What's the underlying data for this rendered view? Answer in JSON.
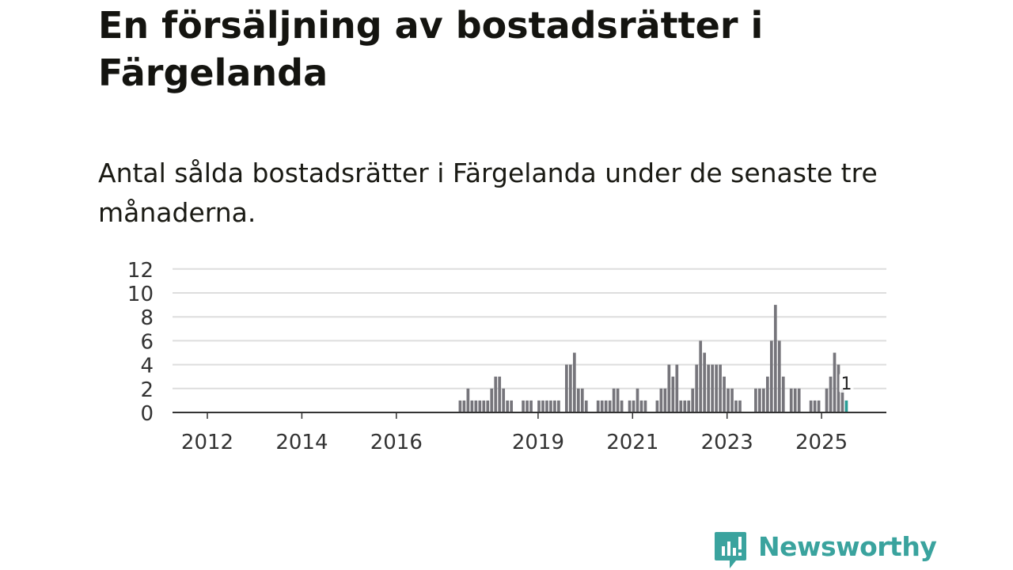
{
  "title": "En försäljning av bostadsrätter i Färgelanda",
  "subtitle": "Antal sålda bostadsrätter i Färgelanda under de senaste tre månaderna.",
  "brand": {
    "name": "Newsworthy",
    "color": "#3aa39e"
  },
  "colors": {
    "bar": "#76757b",
    "highlight": "#2a9d96",
    "grid": "#dddddd",
    "axis": "#333333"
  },
  "chart_data": {
    "type": "bar",
    "title": "En försäljning av bostadsrätter i Färgelanda",
    "xlabel": "",
    "ylabel": "",
    "ylim": [
      0,
      12
    ],
    "yticks": [
      0,
      2,
      4,
      6,
      8,
      10,
      12
    ],
    "grid": true,
    "xticks": [
      {
        "label": "2012",
        "year": 2012
      },
      {
        "label": "2014",
        "year": 2014
      },
      {
        "label": "2016",
        "year": 2016
      },
      {
        "label": "2019",
        "year": 2019
      },
      {
        "label": "2021",
        "year": 2021
      },
      {
        "label": "2023",
        "year": 2023
      },
      {
        "label": "2025",
        "year": 2025
      }
    ],
    "start": {
      "year": 2011,
      "month": 6
    },
    "values": [
      0,
      0,
      0,
      0,
      0,
      0,
      0,
      0,
      0,
      0,
      0,
      0,
      0,
      0,
      0,
      0,
      0,
      0,
      0,
      0,
      0,
      0,
      0,
      0,
      0,
      0,
      0,
      0,
      0,
      0,
      0,
      0,
      0,
      0,
      0,
      0,
      0,
      0,
      0,
      0,
      0,
      0,
      0,
      0,
      0,
      0,
      0,
      0,
      0,
      0,
      0,
      0,
      0,
      0,
      0,
      0,
      0,
      0,
      0,
      0,
      0,
      0,
      0,
      0,
      0,
      0,
      0,
      0,
      0,
      0,
      0,
      0,
      1,
      1,
      2,
      1,
      1,
      1,
      1,
      1,
      2,
      3,
      3,
      2,
      1,
      1,
      0,
      0,
      1,
      1,
      1,
      0,
      1,
      1,
      1,
      1,
      1,
      1,
      0,
      4,
      4,
      5,
      2,
      2,
      1,
      0,
      0,
      1,
      1,
      1,
      1,
      2,
      2,
      1,
      0,
      1,
      1,
      2,
      1,
      1,
      0,
      0,
      1,
      2,
      2,
      4,
      3,
      4,
      1,
      1,
      1,
      2,
      4,
      6,
      5,
      4,
      4,
      4,
      4,
      3,
      2,
      2,
      1,
      1,
      0,
      0,
      0,
      2,
      2,
      2,
      3,
      6,
      9,
      6,
      3,
      0,
      2,
      2,
      2,
      0,
      0,
      1,
      1,
      1,
      0,
      2,
      3,
      5,
      4,
      2,
      1
    ],
    "highlight_value": 1,
    "highlight_label": "1"
  }
}
